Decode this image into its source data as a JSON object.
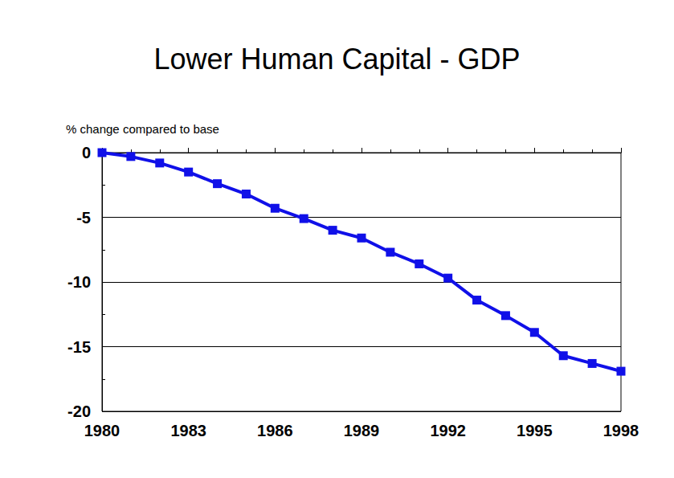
{
  "chart_data": {
    "type": "line",
    "title": "Lower Human Capital - GDP",
    "y_label": "% change compared to base",
    "x": [
      1980,
      1981,
      1982,
      1983,
      1984,
      1985,
      1986,
      1987,
      1988,
      1989,
      1990,
      1991,
      1992,
      1993,
      1994,
      1995,
      1996,
      1997,
      1998
    ],
    "values": [
      0,
      -0.3,
      -0.8,
      -1.5,
      -2.4,
      -3.2,
      -4.3,
      -5.1,
      -6.0,
      -6.6,
      -7.7,
      -8.6,
      -9.7,
      -11.4,
      -12.6,
      -13.9,
      -15.7,
      -16.3,
      -16.9
    ],
    "color": "#1010e8",
    "marker": "square",
    "xlim": [
      1980,
      1998
    ],
    "xticks": [
      1980,
      1983,
      1986,
      1989,
      1992,
      1995,
      1998
    ],
    "ylim": [
      -20,
      0
    ],
    "yticks": [
      -20,
      -15,
      -10,
      -5,
      0
    ],
    "grid": true
  }
}
